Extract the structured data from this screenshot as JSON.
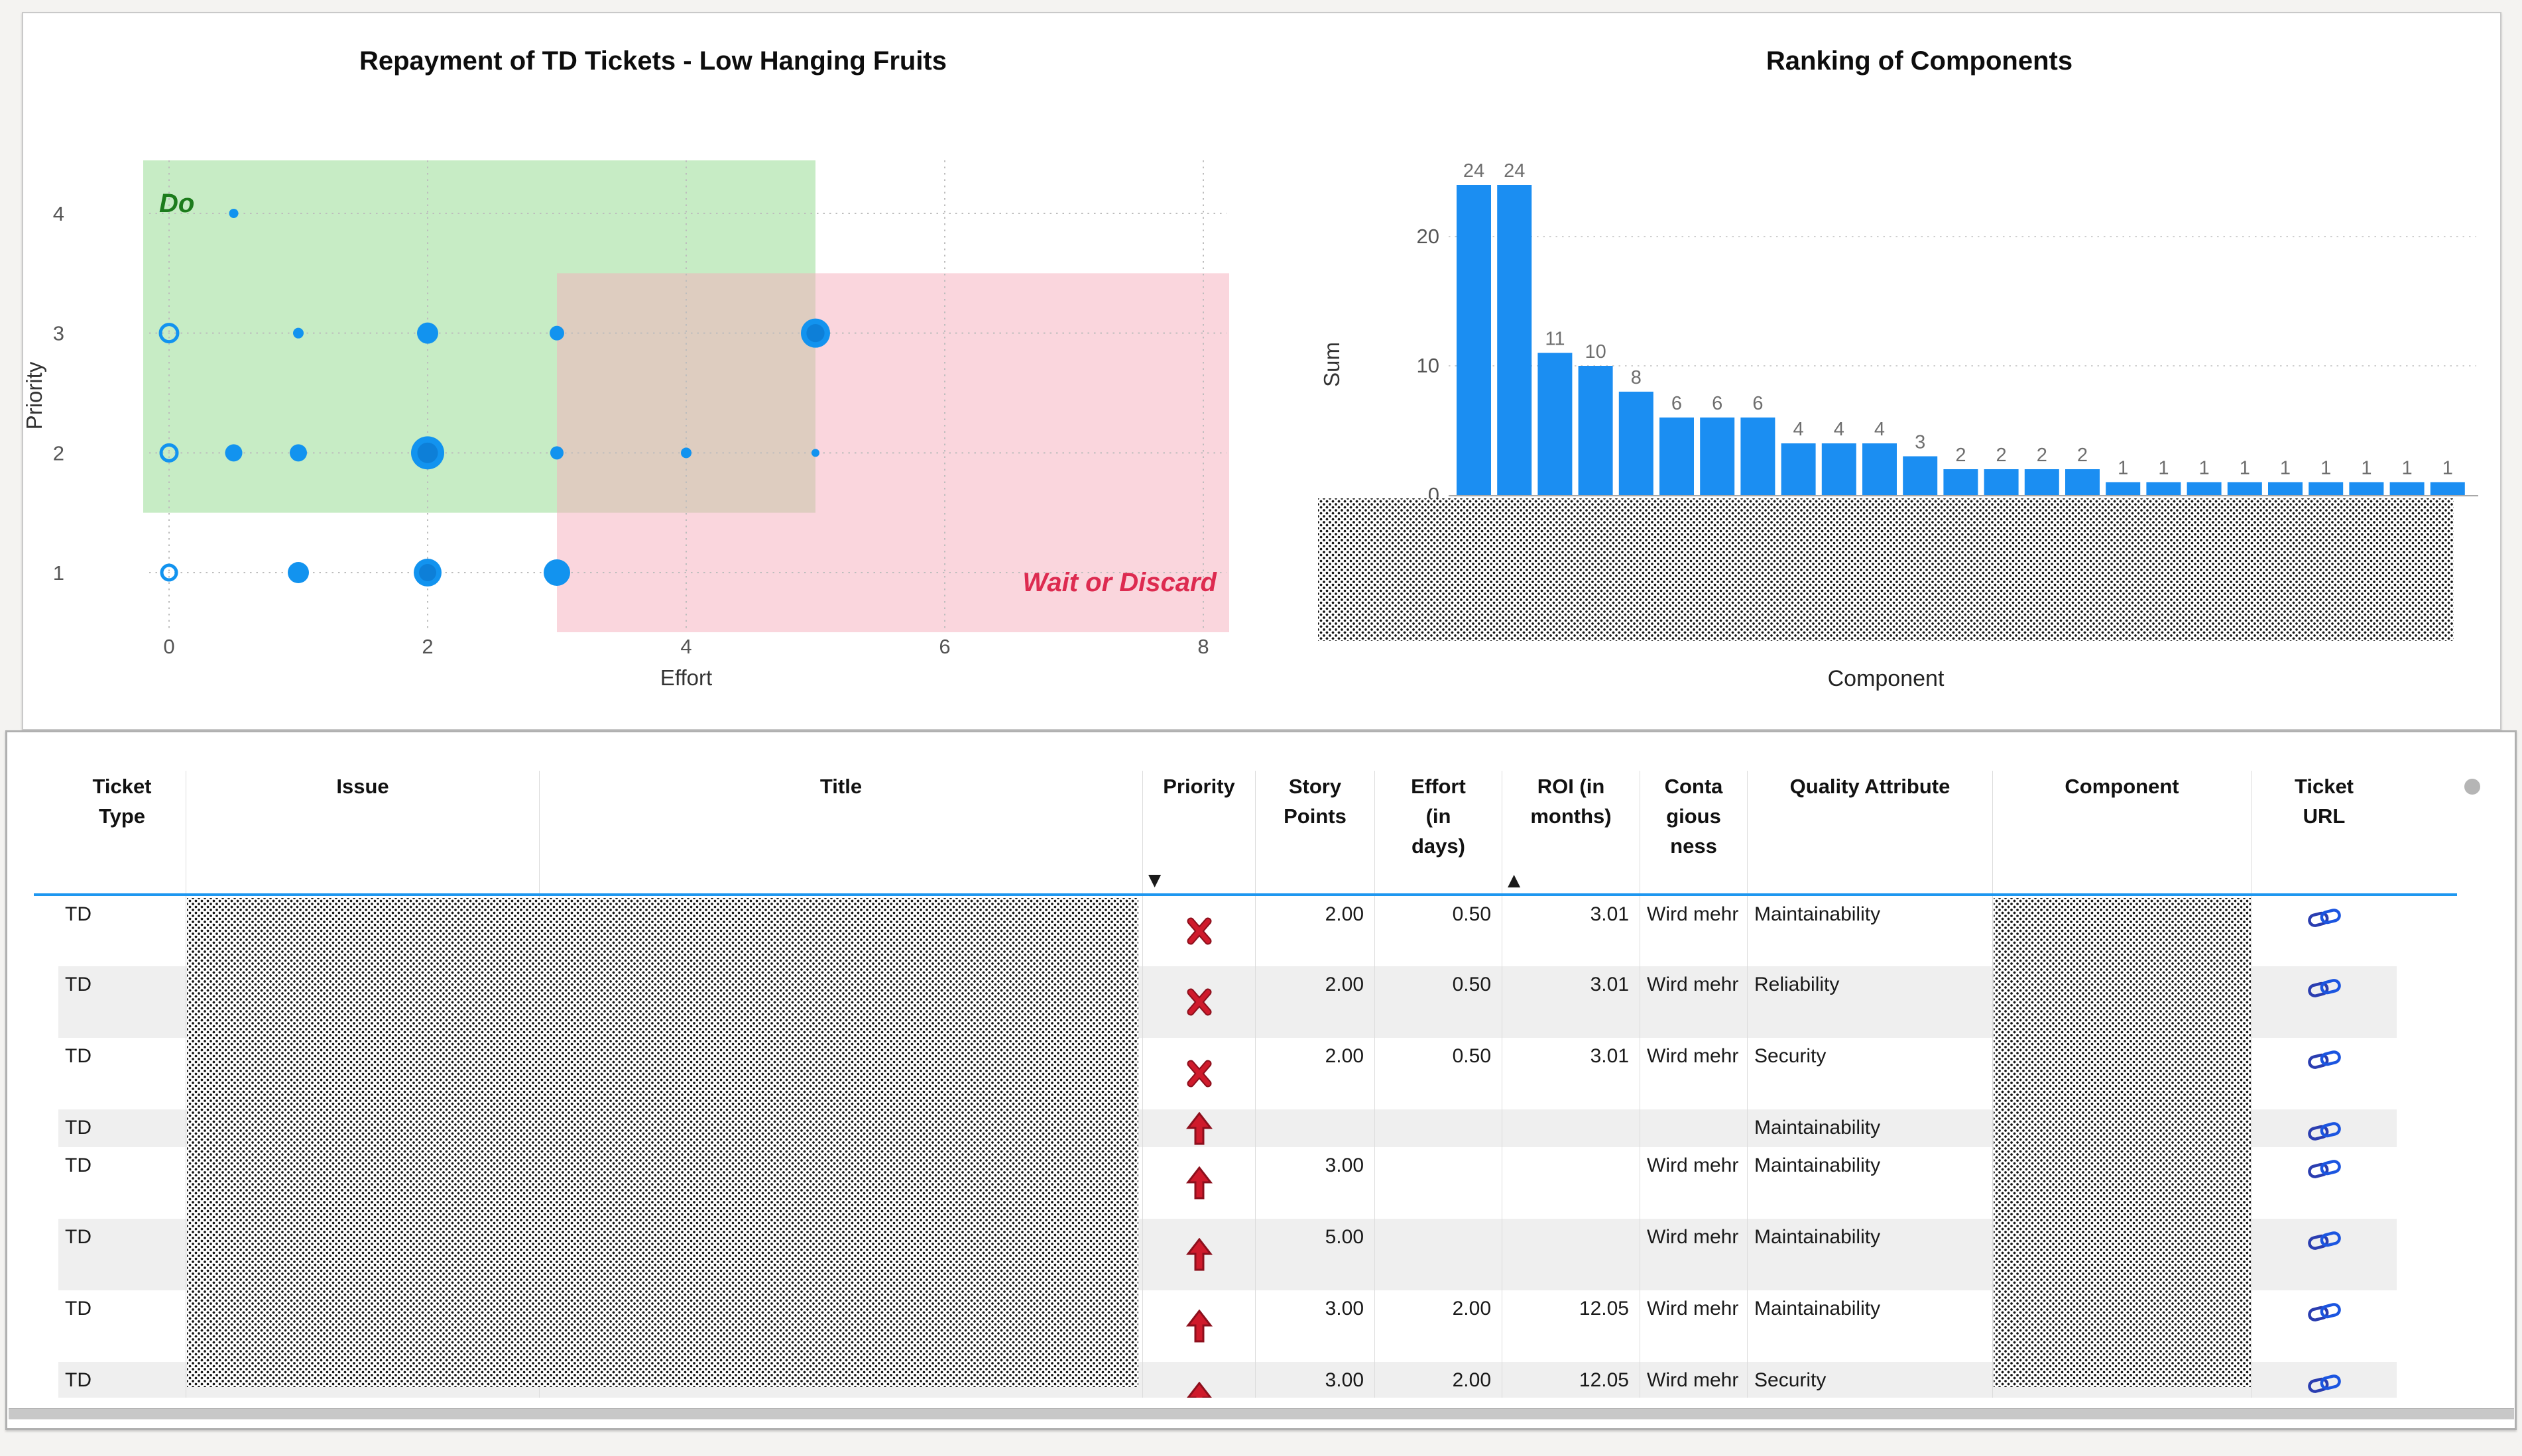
{
  "chart_data": [
    {
      "type": "scatter",
      "title": "Repayment of TD Tickets - Low Hanging Fruits",
      "xlabel": "Effort",
      "ylabel": "Priority",
      "x_ticks": [
        0,
        2,
        4,
        6,
        8
      ],
      "y_ticks": [
        4,
        3,
        2,
        1
      ],
      "x_range": [
        -0.4,
        8.2
      ],
      "y_range": [
        0.5,
        4.5
      ],
      "grid": "dotted",
      "point_color": "#1293ef",
      "point_color_inner": "#0d7fd8",
      "legend_position": "none",
      "regions": [
        {
          "label": "Do",
          "label_color": "#1c7c1c",
          "fill": "#8fd98c",
          "x0": -0.2,
          "x1": 5.0,
          "y0": 1.5,
          "y1": 4.5
        },
        {
          "label": "Wait or Discard",
          "label_color": "#dd2b50",
          "fill": "#f6aebc",
          "x0": 3.0,
          "x1": 8.2,
          "y0": 0.5,
          "y1": 3.5
        }
      ],
      "points": [
        {
          "x": 0.5,
          "y": 4,
          "r": 7,
          "style": "solid"
        },
        {
          "x": 0,
          "y": 3,
          "r": 13,
          "style": "hollow"
        },
        {
          "x": 1,
          "y": 3,
          "r": 8,
          "style": "solid"
        },
        {
          "x": 2,
          "y": 3,
          "r": 16,
          "style": "solid"
        },
        {
          "x": 3,
          "y": 3,
          "r": 11,
          "style": "solid"
        },
        {
          "x": 5,
          "y": 3,
          "r": 22,
          "style": "double"
        },
        {
          "x": 0,
          "y": 2,
          "r": 12,
          "style": "hollow"
        },
        {
          "x": 0.5,
          "y": 2,
          "r": 13,
          "style": "solid"
        },
        {
          "x": 1,
          "y": 2,
          "r": 13,
          "style": "solid"
        },
        {
          "x": 2,
          "y": 2,
          "r": 25,
          "style": "double"
        },
        {
          "x": 3,
          "y": 2,
          "r": 10,
          "style": "solid"
        },
        {
          "x": 4,
          "y": 2,
          "r": 8,
          "style": "solid"
        },
        {
          "x": 5,
          "y": 2,
          "r": 6,
          "style": "solid"
        },
        {
          "x": 0,
          "y": 1,
          "r": 11,
          "style": "hollow"
        },
        {
          "x": 1,
          "y": 1,
          "r": 16,
          "style": "solid"
        },
        {
          "x": 2,
          "y": 1,
          "r": 21,
          "style": "double"
        },
        {
          "x": 3,
          "y": 1,
          "r": 20,
          "style": "solid"
        }
      ]
    },
    {
      "type": "bar",
      "title": "Ranking of Components",
      "xlabel": "Component",
      "ylabel": "Sum",
      "y_ticks": [
        0,
        10,
        20
      ],
      "ylim": [
        0,
        24
      ],
      "values": [
        24,
        24,
        11,
        10,
        8,
        6,
        6,
        6,
        4,
        4,
        4,
        3,
        2,
        2,
        2,
        2,
        1,
        1,
        1,
        1,
        1,
        1,
        1,
        1,
        1
      ],
      "bar_color": "#1b8ef2",
      "value_label_color": "#6e6e6e",
      "x_labels_redacted": true
    }
  ],
  "table": {
    "columns": [
      {
        "label": "Ticket\nType",
        "name": "ticket-type"
      },
      {
        "label": "Issue",
        "name": "issue",
        "redacted": true
      },
      {
        "label": "Title",
        "name": "title",
        "redacted": true
      },
      {
        "label": "Priority",
        "name": "priority",
        "sort": "desc"
      },
      {
        "label": "Story\nPoints",
        "name": "story-points"
      },
      {
        "label": "Effort\n(in\ndays)",
        "name": "effort-days"
      },
      {
        "label": "ROI (in\nmonths)",
        "name": "roi-months",
        "sort": "asc"
      },
      {
        "label": "Conta\ngious\nness",
        "name": "contagiousness"
      },
      {
        "label": "Quality Attribute",
        "name": "quality-attribute"
      },
      {
        "label": "Component",
        "name": "component",
        "redacted": true
      },
      {
        "label": "Ticket\nURL",
        "name": "ticket-url"
      }
    ],
    "sort_icons": {
      "desc": "▼",
      "asc": "▲"
    },
    "rows": [
      {
        "ticket_type": "TD",
        "priority": "cross",
        "story_points": "2.00",
        "effort": "0.50",
        "roi": "3.01",
        "contagiousness": "Wird mehr",
        "quality": "Maintainability",
        "link": true
      },
      {
        "ticket_type": "TD",
        "priority": "cross",
        "story_points": "2.00",
        "effort": "0.50",
        "roi": "3.01",
        "contagiousness": "Wird mehr",
        "quality": "Reliability",
        "link": true
      },
      {
        "ticket_type": "TD",
        "priority": "cross",
        "story_points": "2.00",
        "effort": "0.50",
        "roi": "3.01",
        "contagiousness": "Wird mehr",
        "quality": "Security",
        "link": true
      },
      {
        "ticket_type": "TD",
        "priority": "up",
        "story_points": "",
        "effort": "",
        "roi": "",
        "contagiousness": "",
        "quality": "Maintainability",
        "link": true
      },
      {
        "ticket_type": "TD",
        "priority": "up",
        "story_points": "3.00",
        "effort": "",
        "roi": "",
        "contagiousness": "Wird mehr",
        "quality": "Maintainability",
        "link": true
      },
      {
        "ticket_type": "TD",
        "priority": "up",
        "story_points": "5.00",
        "effort": "",
        "roi": "",
        "contagiousness": "Wird mehr",
        "quality": "Maintainability",
        "link": true
      },
      {
        "ticket_type": "TD",
        "priority": "up",
        "story_points": "3.00",
        "effort": "2.00",
        "roi": "12.05",
        "contagiousness": "Wird mehr",
        "quality": "Maintainability",
        "link": true
      },
      {
        "ticket_type": "TD",
        "priority": "up",
        "story_points": "3.00",
        "effort": "2.00",
        "roi": "12.05",
        "contagiousness": "Wird mehr",
        "quality": "Security",
        "link": true
      }
    ],
    "priority_icon_color": "#c01424"
  }
}
